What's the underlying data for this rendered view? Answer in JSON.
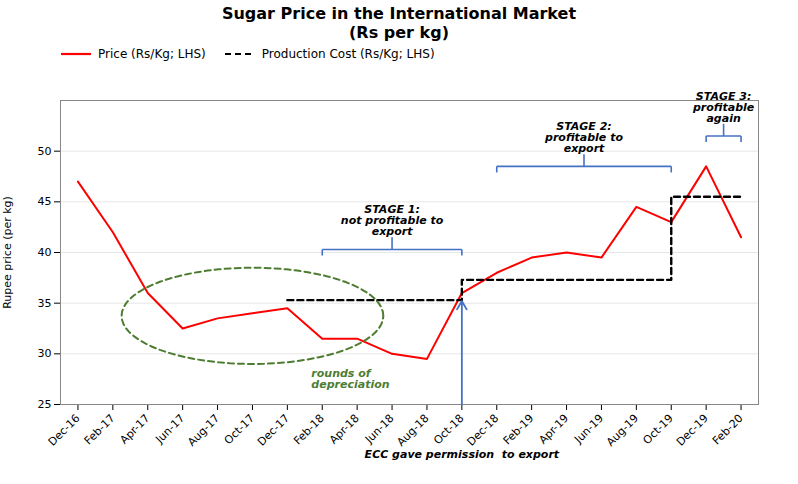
{
  "chart_data": {
    "type": "line",
    "title": "Sugar Price in the International Market\n(Rs per kg)",
    "ylabel": "Rupee price (per kg)",
    "categories": [
      "Dec-16",
      "Feb-17",
      "Apr-17",
      "Jun-17",
      "Aug-17",
      "Oct-17",
      "Dec-17",
      "Feb-18",
      "Apr-18",
      "Jun-18",
      "Aug-18",
      "Oct-18",
      "Dec-18",
      "Feb-19",
      "Apr-19",
      "Jun-19",
      "Aug-19",
      "Oct-19",
      "Dec-19",
      "Feb-20"
    ],
    "series": [
      {
        "name": "Price (Rs/Kg; LHS)",
        "color": "#ff0000",
        "line_style": "solid",
        "values": [
          47,
          42,
          36,
          32.5,
          33.5,
          34,
          34.5,
          31.5,
          31.5,
          30,
          29.5,
          36,
          38,
          39.5,
          40,
          39.5,
          44.5,
          43,
          48.5,
          41.5
        ]
      },
      {
        "name": "Production Cost (Rs/Kg; LHS)",
        "color": "#000000",
        "type": "step",
        "line_style": "dashed",
        "values": [
          null,
          null,
          null,
          null,
          null,
          null,
          35.3,
          35.3,
          35.3,
          35.3,
          35.3,
          37.3,
          37.3,
          37.3,
          37.3,
          37.3,
          37.3,
          45.5,
          45.5,
          45.5
        ]
      }
    ],
    "ylim": [
      25,
      55
    ],
    "yticks": [
      25,
      30,
      35,
      40,
      45,
      50
    ],
    "grid": true,
    "legend": "upper left",
    "annotations": [
      {
        "type": "ellipse",
        "text": "rounds of\ndepreciation",
        "x": [
          "Apr-17",
          "Apr-18"
        ],
        "color": "#4e7d32"
      },
      {
        "type": "bracket",
        "text": "STAGE 1:\nnot profitable to\nexport",
        "x": [
          "Feb-18",
          "Oct-18"
        ],
        "color": "#4472c4"
      },
      {
        "type": "bracket",
        "text": "STAGE 2:\nprofitable to\nexport",
        "x": [
          "Dec-18",
          "Oct-19"
        ],
        "color": "#4472c4"
      },
      {
        "type": "bracket",
        "text": "STAGE 3:\nprofitable\nagain",
        "x": [
          "Dec-19",
          "Feb-20"
        ],
        "color": "#4472c4"
      },
      {
        "type": "arrow",
        "text": "ECC gave permission  to export",
        "x": "Oct-18",
        "color": "#4472c4"
      }
    ]
  }
}
